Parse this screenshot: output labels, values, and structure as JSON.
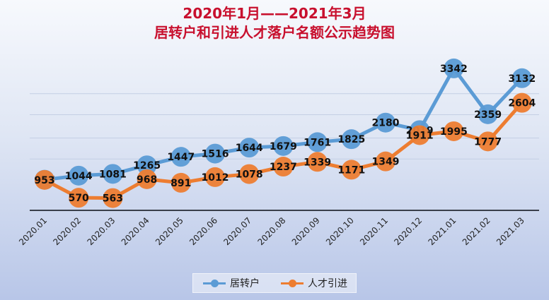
{
  "title": {
    "line1": "2020年1月——2021年3月",
    "line2": "居转户和引进人才落户名额公示趋势图"
  },
  "colors": {
    "series1": "#5b9bd5",
    "series2": "#ed7d31",
    "title": "#c8102e"
  },
  "chart_data": {
    "type": "line",
    "categories": [
      "2020.01",
      "2020.02",
      "2020.03",
      "2020.04",
      "2020.05",
      "2020.06",
      "2020.07",
      "2020.08",
      "2020.09",
      "2020.10",
      "2020.11",
      "2020.12",
      "2021.01",
      "2021.02",
      "2021.03"
    ],
    "series": [
      {
        "name": "居转户",
        "values": [
          957,
          1044,
          1081,
          1265,
          1447,
          1516,
          1644,
          1679,
          1761,
          1825,
          2180,
          2019,
          3342,
          2359,
          3132
        ]
      },
      {
        "name": "人才引进",
        "values": [
          953,
          570,
          563,
          968,
          891,
          1012,
          1078,
          1237,
          1339,
          1171,
          1349,
          1911,
          1995,
          1777,
          2604
        ]
      }
    ],
    "grid": true,
    "legend": "bottom"
  }
}
